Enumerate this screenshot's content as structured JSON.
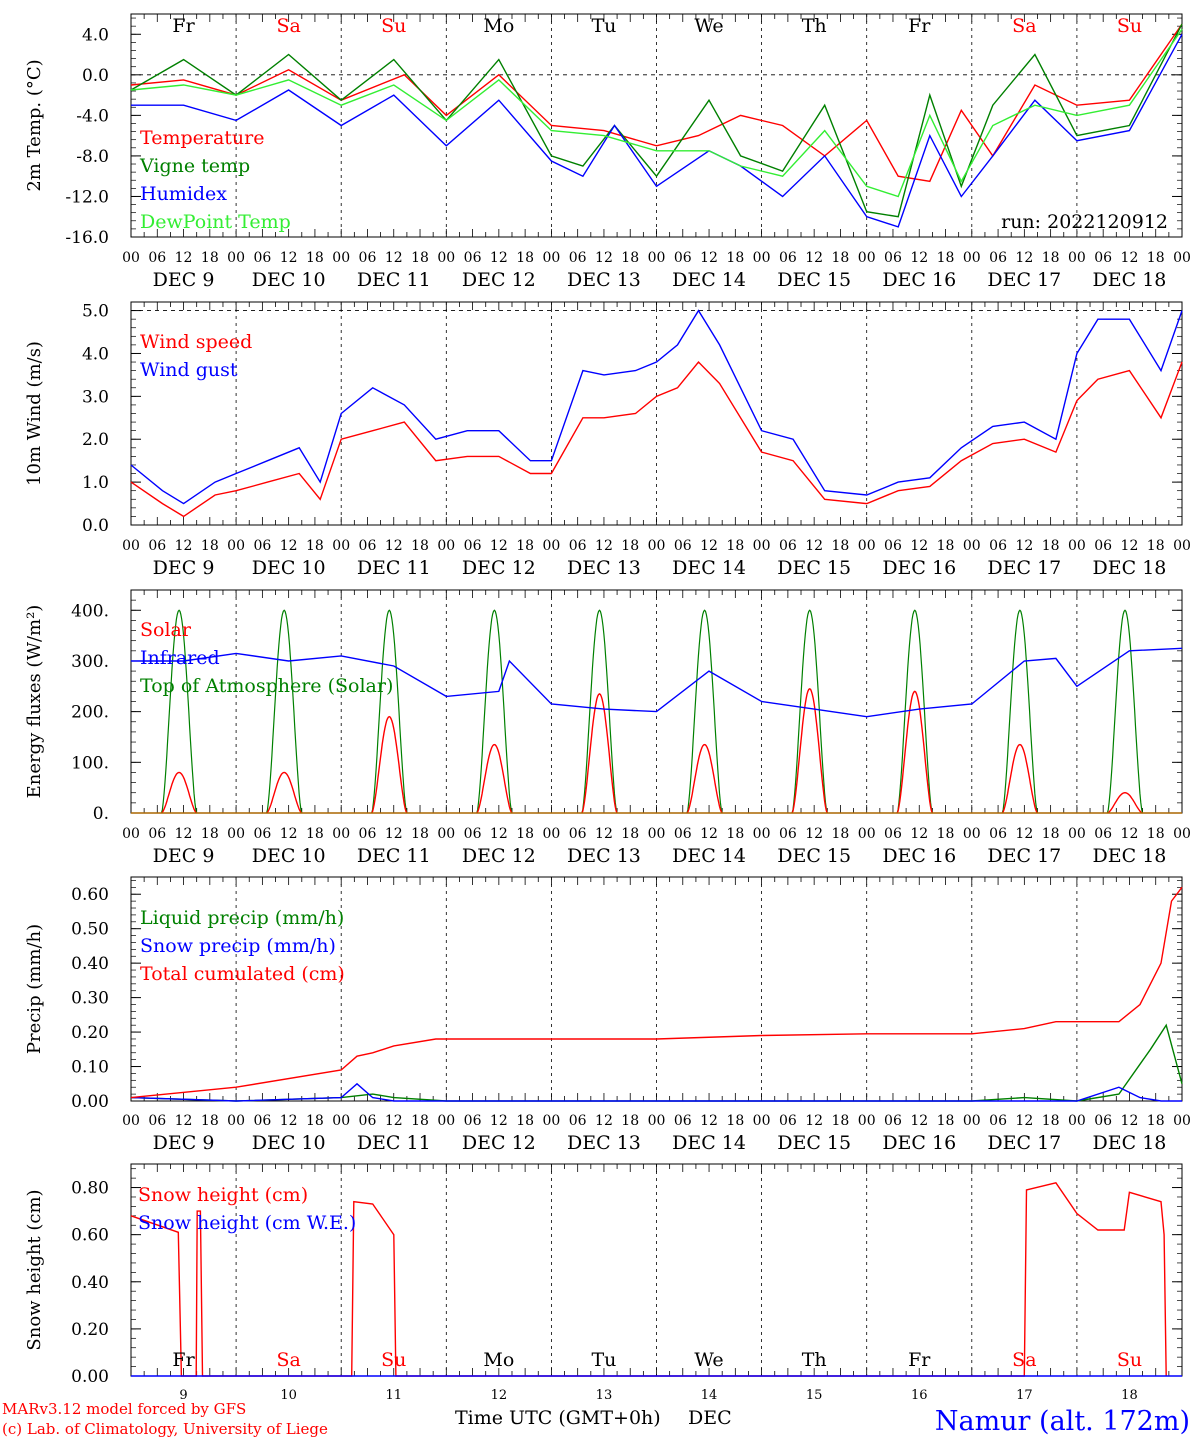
{
  "days_of_week": [
    "Fr",
    "Sa",
    "Su",
    "Mo",
    "Tu",
    "We",
    "Th",
    "Fr",
    "Sa",
    "Su"
  ],
  "weekend_days": [
    "Sa",
    "Su"
  ],
  "date_labels": [
    "DEC  9",
    "DEC 10",
    "DEC 11",
    "DEC 12",
    "DEC 13",
    "DEC 14",
    "DEC 15",
    "DEC 16",
    "DEC 17",
    "DEC 18"
  ],
  "hour_ticks": [
    "00",
    "06",
    "12",
    "18"
  ],
  "final_hour_tick": "00",
  "footer": {
    "model_credit": "MARv3.12 model forced by GFS",
    "copyright": "(c) Lab. of Climatology, University of Liege",
    "x_axis_title": "Time UTC (GMT+0h)",
    "x_axis_unit": "DEC",
    "station": "Namur (alt. 172m)",
    "day_numbers": [
      "9",
      "10",
      "11",
      "12",
      "13",
      "14",
      "15",
      "16",
      "17",
      "18"
    ]
  },
  "colors": {
    "red": "#ff0000",
    "green": "#008000",
    "blue": "#0000ff",
    "light_green": "#33ee33",
    "brown": "#aa6600",
    "station_blue": "#0000ff"
  },
  "chart_data": [
    {
      "type": "line",
      "ylabel": "2m Temp. (°C)",
      "ylim": [
        -16,
        6
      ],
      "y_ticks": [
        "4.0",
        "0.0",
        "-4.0",
        "-8.0",
        "-12.0",
        "-16.0"
      ],
      "run_label": "run: 2022120912",
      "x_range_days": [
        0,
        10
      ],
      "series": [
        {
          "name": "Temperature",
          "color": "red",
          "x": [
            0,
            0.5,
            1,
            1.5,
            2,
            2.6,
            3,
            3.5,
            4,
            4.5,
            5,
            5.4,
            5.8,
            6.2,
            6.6,
            7,
            7.3,
            7.6,
            7.9,
            8.2,
            8.6,
            9,
            9.5,
            10
          ],
          "y": [
            -1,
            -0.5,
            -2,
            0.5,
            -2.5,
            0,
            -4,
            0,
            -5,
            -5.5,
            -7,
            -6,
            -4,
            -5,
            -8,
            -4.5,
            -10,
            -10.5,
            -3.5,
            -8,
            -1,
            -3,
            -2.5,
            5
          ]
        },
        {
          "name": "Vigne temp",
          "color": "green",
          "x": [
            0,
            0.5,
            1,
            1.5,
            2,
            2.5,
            3,
            3.5,
            4,
            4.3,
            4.6,
            5,
            5.5,
            5.8,
            6.2,
            6.6,
            7,
            7.3,
            7.6,
            7.9,
            8.2,
            8.6,
            9,
            9.5,
            10
          ],
          "y": [
            -1.5,
            1.5,
            -2,
            2,
            -2.5,
            1.5,
            -4.5,
            1.5,
            -8,
            -9,
            -5,
            -10,
            -2.5,
            -8,
            -9.5,
            -3,
            -13.5,
            -14,
            -2,
            -11,
            -3,
            2,
            -6,
            -5,
            5
          ]
        },
        {
          "name": "Humidex",
          "color": "blue",
          "x": [
            0,
            0.5,
            1,
            1.5,
            2,
            2.5,
            3,
            3.5,
            4,
            4.3,
            4.6,
            5,
            5.5,
            5.8,
            6.2,
            6.6,
            7,
            7.3,
            7.6,
            7.9,
            8.2,
            8.6,
            9,
            9.5,
            10
          ],
          "y": [
            -3,
            -3,
            -4.5,
            -1.5,
            -5,
            -2,
            -7,
            -2.5,
            -8.5,
            -10,
            -5,
            -11,
            -7.5,
            -9,
            -12,
            -8,
            -14,
            -15,
            -6,
            -12,
            -8,
            -2.5,
            -6.5,
            -5.5,
            4
          ]
        },
        {
          "name": "DewPoint Temp",
          "color": "light_green",
          "x": [
            0,
            0.5,
            1,
            1.5,
            2,
            2.5,
            3,
            3.5,
            4,
            4.5,
            5,
            5.5,
            5.8,
            6.2,
            6.6,
            7,
            7.3,
            7.6,
            7.9,
            8.2,
            8.6,
            9,
            9.5,
            10
          ],
          "y": [
            -1.5,
            -1,
            -2,
            -0.5,
            -3,
            -1,
            -4.5,
            -0.5,
            -5.5,
            -6,
            -7.5,
            -7.5,
            -9,
            -10,
            -5.5,
            -11,
            -12,
            -4,
            -10.5,
            -5,
            -3,
            -4,
            -3,
            4.5
          ]
        }
      ]
    },
    {
      "type": "line",
      "ylabel": "10m Wind (m/s)",
      "ylim": [
        0,
        5.2
      ],
      "y_ticks": [
        "5.0",
        "4.0",
        "3.0",
        "2.0",
        "1.0",
        "0.0"
      ],
      "series": [
        {
          "name": "Wind speed",
          "color": "red",
          "x": [
            0,
            0.3,
            0.5,
            0.8,
            1,
            1.3,
            1.6,
            1.8,
            2,
            2.3,
            2.6,
            2.9,
            3.2,
            3.5,
            3.8,
            4,
            4.3,
            4.5,
            4.8,
            5,
            5.2,
            5.4,
            5.6,
            6,
            6.3,
            6.6,
            7,
            7.3,
            7.6,
            7.9,
            8.2,
            8.5,
            8.8,
            9,
            9.2,
            9.5,
            9.8,
            10
          ],
          "y": [
            1,
            0.5,
            0.2,
            0.7,
            0.8,
            1,
            1.2,
            0.6,
            2,
            2.2,
            2.4,
            1.5,
            1.6,
            1.6,
            1.2,
            1.2,
            2.5,
            2.5,
            2.6,
            3,
            3.2,
            3.8,
            3.3,
            1.7,
            1.5,
            0.6,
            0.5,
            0.8,
            0.9,
            1.5,
            1.9,
            2,
            1.7,
            2.9,
            3.4,
            3.6,
            2.5,
            3.8
          ]
        },
        {
          "name": "Wind gust",
          "color": "blue",
          "x": [
            0,
            0.3,
            0.5,
            0.8,
            1,
            1.3,
            1.6,
            1.8,
            2,
            2.3,
            2.6,
            2.9,
            3.2,
            3.5,
            3.8,
            4,
            4.3,
            4.5,
            4.8,
            5,
            5.2,
            5.4,
            5.6,
            6,
            6.3,
            6.6,
            7,
            7.3,
            7.6,
            7.9,
            8.2,
            8.5,
            8.8,
            9,
            9.2,
            9.5,
            9.8,
            10
          ],
          "y": [
            1.4,
            0.8,
            0.5,
            1,
            1.2,
            1.5,
            1.8,
            1,
            2.6,
            3.2,
            2.8,
            2,
            2.2,
            2.2,
            1.5,
            1.5,
            3.6,
            3.5,
            3.6,
            3.8,
            4.2,
            5,
            4.2,
            2.2,
            2,
            0.8,
            0.7,
            1,
            1.1,
            1.8,
            2.3,
            2.4,
            2,
            4,
            4.8,
            4.8,
            3.6,
            5
          ]
        }
      ]
    },
    {
      "type": "line",
      "ylabel": "Energy fluxes (W/m²)",
      "ylim": [
        0,
        440
      ],
      "y_ticks": [
        "400.",
        "300.",
        "200.",
        "100.",
        "0."
      ],
      "solar_peaks": [
        80,
        80,
        190,
        135,
        235,
        135,
        245,
        240,
        135,
        40
      ],
      "toa_peak": 400,
      "series": [
        {
          "name": "Solar",
          "color": "red"
        },
        {
          "name": "Infrared",
          "color": "blue",
          "x": [
            0,
            0.5,
            1,
            1.5,
            2,
            2.5,
            3,
            3.5,
            3.6,
            4,
            4.5,
            5,
            5.5,
            6,
            6.5,
            7,
            7.5,
            8,
            8.5,
            8.8,
            9,
            9.5,
            10
          ],
          "y": [
            300,
            300,
            315,
            300,
            310,
            290,
            230,
            240,
            300,
            215,
            205,
            200,
            280,
            220,
            205,
            190,
            205,
            215,
            300,
            305,
            250,
            320,
            325
          ]
        },
        {
          "name": "Top of Atmosphere (Solar)",
          "color": "green"
        }
      ]
    },
    {
      "type": "line",
      "ylabel": "Precip (mm/h)",
      "ylim": [
        0,
        0.65
      ],
      "y_ticks": [
        "0.60",
        "0.50",
        "0.40",
        "0.30",
        "0.20",
        "0.10",
        "0.00"
      ],
      "series": [
        {
          "name": "Liquid precip (mm/h)",
          "color": "green",
          "x": [
            0,
            1,
            2,
            2.3,
            2.5,
            3,
            4,
            5,
            6,
            7,
            8,
            8.5,
            9,
            9.4,
            9.7,
            9.85,
            10
          ],
          "y": [
            0.01,
            0,
            0.01,
            0.02,
            0.01,
            0,
            0,
            0,
            0,
            0,
            0,
            0.01,
            0,
            0.02,
            0.15,
            0.22,
            0.05
          ]
        },
        {
          "name": "Snow precip (mm/h)",
          "color": "blue",
          "x": [
            0,
            1,
            2,
            2.15,
            2.3,
            2.5,
            3,
            9,
            9.4,
            9.6,
            9.8,
            10
          ],
          "y": [
            0.01,
            0,
            0.01,
            0.05,
            0.01,
            0,
            0,
            0,
            0.04,
            0.01,
            0,
            0
          ]
        },
        {
          "name": "Total cumulated (cm)",
          "color": "red",
          "x": [
            0,
            1,
            2,
            2.15,
            2.3,
            2.5,
            2.9,
            3.5,
            5,
            6,
            7,
            8,
            8.5,
            8.8,
            9.4,
            9.6,
            9.8,
            9.9,
            10
          ],
          "y": [
            0.01,
            0.04,
            0.09,
            0.13,
            0.14,
            0.16,
            0.18,
            0.18,
            0.18,
            0.19,
            0.195,
            0.195,
            0.21,
            0.23,
            0.23,
            0.28,
            0.4,
            0.58,
            0.62
          ]
        }
      ]
    },
    {
      "type": "line",
      "ylabel": "Snow height (cm)",
      "ylim": [
        0,
        0.9
      ],
      "y_ticks": [
        "0.80",
        "0.60",
        "0.40",
        "0.20",
        "0.00"
      ],
      "series": [
        {
          "name": "Snow height (cm)",
          "color": "red",
          "x": [
            0,
            0.45,
            0.48,
            0.5,
            0.62,
            0.63,
            0.66,
            0.68,
            0.69,
            2.1,
            2.12,
            2.3,
            2.5,
            2.52,
            8.5,
            8.52,
            8.8,
            9.0,
            9.2,
            9.45,
            9.5,
            9.8,
            9.83,
            9.85
          ],
          "y": [
            0.68,
            0.61,
            0,
            0,
            0,
            0.7,
            0.7,
            0,
            0,
            0,
            0.74,
            0.73,
            0.6,
            0,
            0,
            0.79,
            0.82,
            0.69,
            0.62,
            0.62,
            0.78,
            0.74,
            0.6,
            0
          ]
        },
        {
          "name": "Snow height (cm W.E.)",
          "color": "blue",
          "x": [
            0,
            10
          ],
          "y": [
            0,
            0
          ]
        }
      ]
    }
  ]
}
